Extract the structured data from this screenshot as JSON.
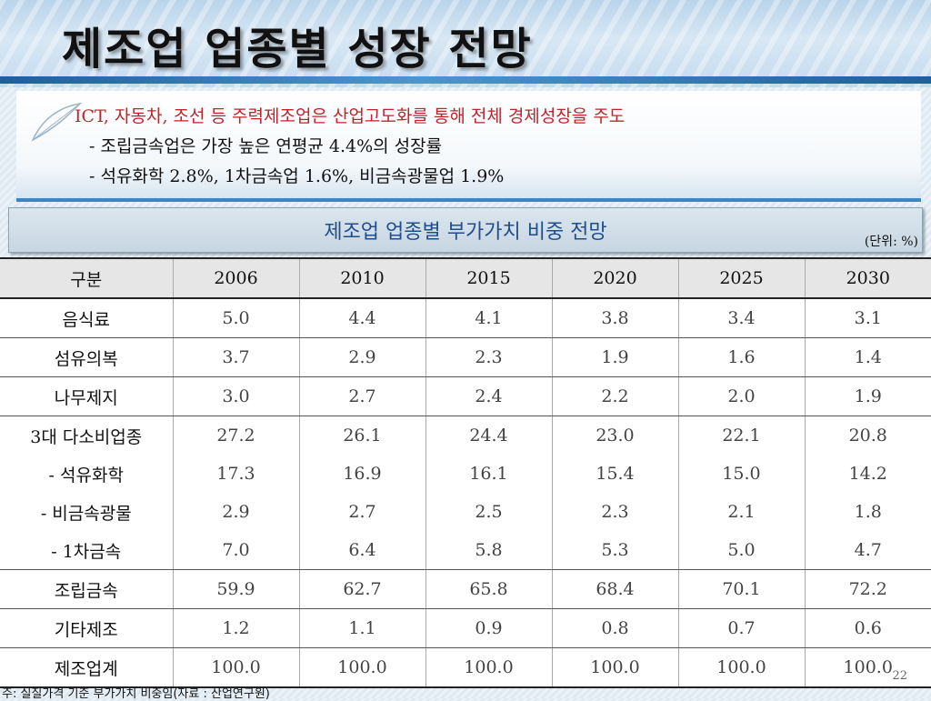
{
  "slide": {
    "title": "제조업 업종별 성장 전망",
    "page_number": "22"
  },
  "bullets": {
    "main": "ICT, 자동차, 조선 등 주력제조업은 산업고도화를 통해 전체 경제성장을 주도",
    "sub1": "- 조립금속업은 가장 높은 연평균 4.4%의 성장률",
    "sub2": "- 석유화학 2.8%, 1차금속업 1.6%, 비금속광물업 1.9%"
  },
  "table": {
    "caption": "제조업 업종별 부가가치 비중 전망",
    "unit": "(단위: %)",
    "headers": [
      "구분",
      "2006",
      "2010",
      "2015",
      "2020",
      "2025",
      "2030"
    ],
    "rows": [
      {
        "label": "음식료",
        "values": [
          "5.0",
          "4.4",
          "4.1",
          "3.8",
          "3.4",
          "3.1"
        ]
      },
      {
        "label": "섬유의복",
        "values": [
          "3.7",
          "2.9",
          "2.3",
          "1.9",
          "1.6",
          "1.4"
        ]
      },
      {
        "label": "나무제지",
        "values": [
          "3.0",
          "2.7",
          "2.4",
          "2.2",
          "2.0",
          "1.9"
        ]
      },
      {
        "label": "3대 다소비업종",
        "values": [
          "27.2",
          "26.1",
          "24.4",
          "23.0",
          "22.1",
          "20.8"
        ]
      },
      {
        "label": "- 석유화학",
        "values": [
          "17.3",
          "16.9",
          "16.1",
          "15.4",
          "15.0",
          "14.2"
        ]
      },
      {
        "label": "- 비금속광물",
        "values": [
          "2.9",
          "2.7",
          "2.5",
          "2.3",
          "2.1",
          "1.8"
        ]
      },
      {
        "label": "- 1차금속",
        "values": [
          "7.0",
          "6.4",
          "5.8",
          "5.3",
          "5.0",
          "4.7"
        ]
      },
      {
        "label": "조립금속",
        "values": [
          "59.9",
          "62.7",
          "65.8",
          "68.4",
          "70.1",
          "72.2"
        ]
      },
      {
        "label": "기타제조",
        "values": [
          "1.2",
          "1.1",
          "0.9",
          "0.8",
          "0.7",
          "0.6"
        ]
      },
      {
        "label": "제조업계",
        "values": [
          "100.0",
          "100.0",
          "100.0",
          "100.0",
          "100.0",
          "100.0"
        ]
      }
    ]
  },
  "footnote": "주: 실질가격 기준 부가가치 비중임(자료 : 산업연구원)",
  "colors": {
    "title_text": "#111111",
    "bullet_highlight": "#c0242b",
    "caption_text": "#1f4e8c",
    "header_accent": "#1e5f9c"
  }
}
